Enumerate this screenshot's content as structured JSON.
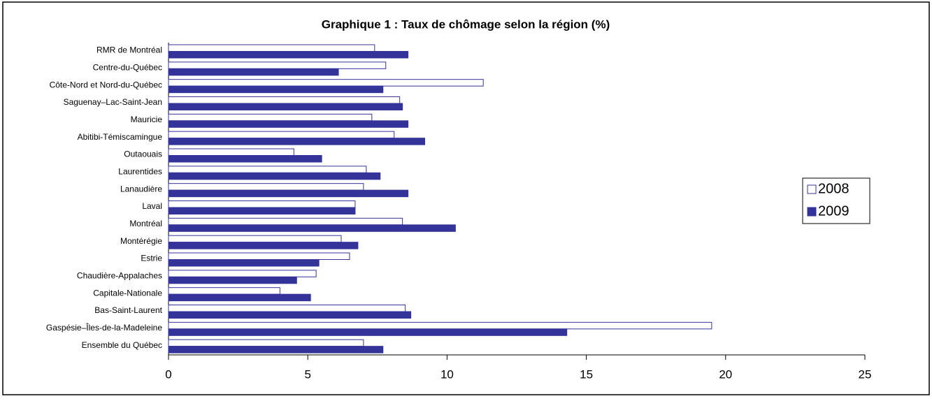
{
  "chart_data": {
    "type": "hbar",
    "title": "Graphique 1 : Taux de chômage selon la région (%)",
    "categories": [
      "RMR de Montréal",
      "Centre-du-Québec",
      "Côte-Nord et Nord-du-Québec",
      "Saguenay–Lac-Saint-Jean",
      "Mauricie",
      "Abitibi-Témiscamingue",
      "Outaouais",
      "Laurentides",
      "Lanaudière",
      "Laval",
      "Montréal",
      "Montérégie",
      "Estrie",
      "Chaudière-Appalaches",
      "Capitale-Nationale",
      "Bas-Saint-Laurent",
      "Gaspésie–Îles-de-la-Madeleine",
      "Ensemble du Québec"
    ],
    "series": [
      {
        "name": "2008",
        "color": "#ffffff",
        "values": [
          7.4,
          7.8,
          11.3,
          8.3,
          7.3,
          8.1,
          4.5,
          7.1,
          7.0,
          6.7,
          8.4,
          6.2,
          6.5,
          5.3,
          4.0,
          8.5,
          19.5,
          7.0
        ]
      },
      {
        "name": "2009",
        "color": "#333399",
        "values": [
          8.6,
          6.1,
          7.7,
          8.4,
          8.6,
          9.2,
          5.5,
          7.6,
          8.6,
          6.7,
          10.3,
          6.8,
          5.4,
          4.6,
          5.1,
          8.7,
          14.3,
          7.7
        ]
      }
    ],
    "xlim": [
      0,
      25
    ],
    "xticks": [
      0,
      5,
      10,
      15,
      20,
      25
    ],
    "legend": "right"
  }
}
